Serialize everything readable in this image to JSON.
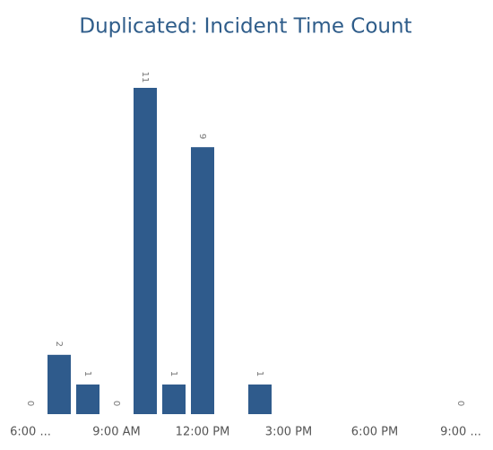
{
  "chart_data": {
    "type": "bar",
    "title": "Duplicated: Incident Time Count",
    "categories": [
      "6:00 ...",
      null,
      null,
      "9:00 AM",
      null,
      null,
      "12:00 PM",
      null,
      null,
      "3:00 PM",
      null,
      null,
      "6:00 PM",
      null,
      null,
      "9:00 ..."
    ],
    "values": [
      0,
      2,
      1,
      0,
      11,
      1,
      9,
      null,
      1,
      null,
      null,
      null,
      null,
      null,
      null,
      0
    ],
    "color": "#2f5b8c",
    "ylim": [
      0,
      11
    ],
    "grid": false
  }
}
